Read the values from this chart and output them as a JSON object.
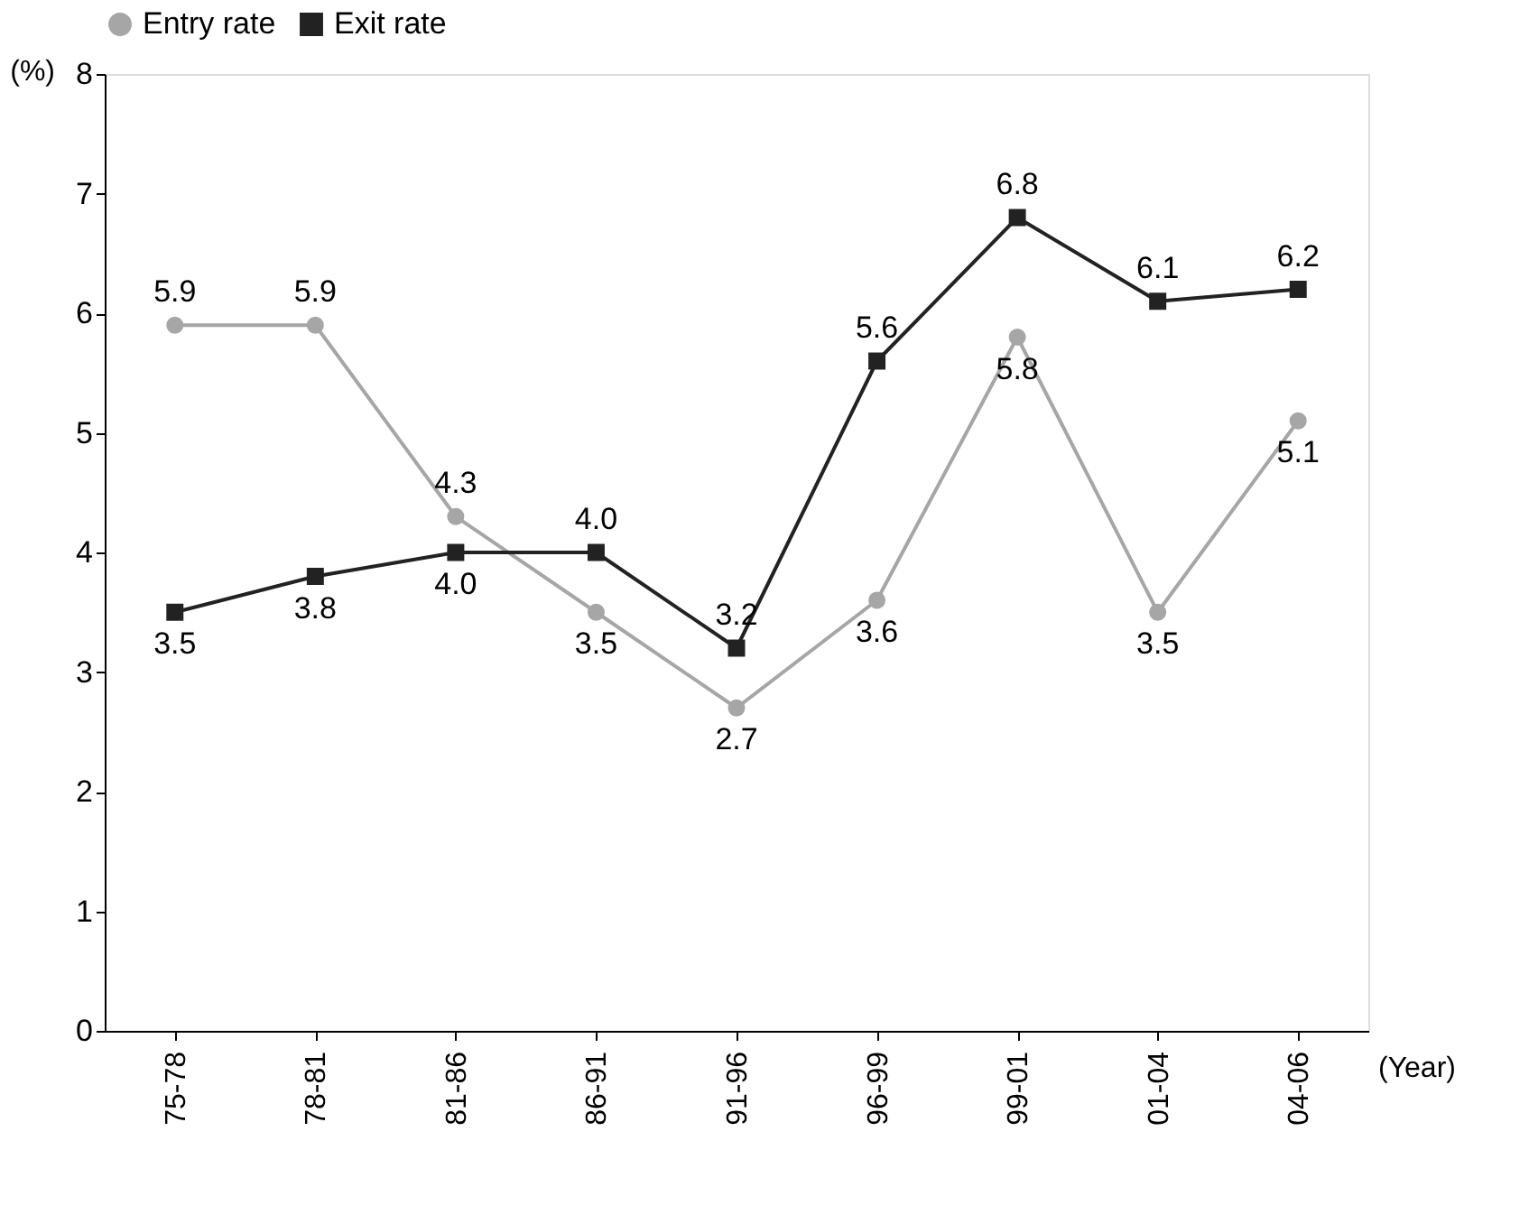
{
  "chart_data": {
    "type": "line",
    "categories": [
      "75-78",
      "78-81",
      "81-86",
      "86-91",
      "91-96",
      "96-99",
      "99-01",
      "01-04",
      "04-06"
    ],
    "series": [
      {
        "name": "Entry rate",
        "color": "#a6a6a6",
        "marker": "circle",
        "line_style": "solid",
        "values": [
          5.9,
          5.9,
          4.3,
          3.5,
          2.7,
          3.6,
          5.8,
          3.5,
          5.1
        ],
        "value_labels": [
          "5.9",
          "5.9",
          "4.3",
          "3.5",
          "2.7",
          "3.6",
          "5.8",
          "3.5",
          "5.1"
        ]
      },
      {
        "name": "Exit rate",
        "color": "#222222",
        "marker": "square",
        "line_style": "solid",
        "values": [
          3.5,
          3.8,
          4.0,
          4.0,
          3.2,
          5.6,
          6.8,
          6.1,
          6.2
        ],
        "value_labels": [
          "3.5",
          "3.8",
          "4.0",
          "4.0",
          "3.2",
          "5.6",
          "6.8",
          "6.1",
          "6.2"
        ]
      }
    ],
    "ylim": [
      0,
      8
    ],
    "yticks": [
      0,
      1,
      2,
      3,
      4,
      5,
      6,
      7,
      8
    ],
    "ylabel": "(%)",
    "xlabel": "(Year)",
    "grid": false,
    "legend": "top"
  }
}
